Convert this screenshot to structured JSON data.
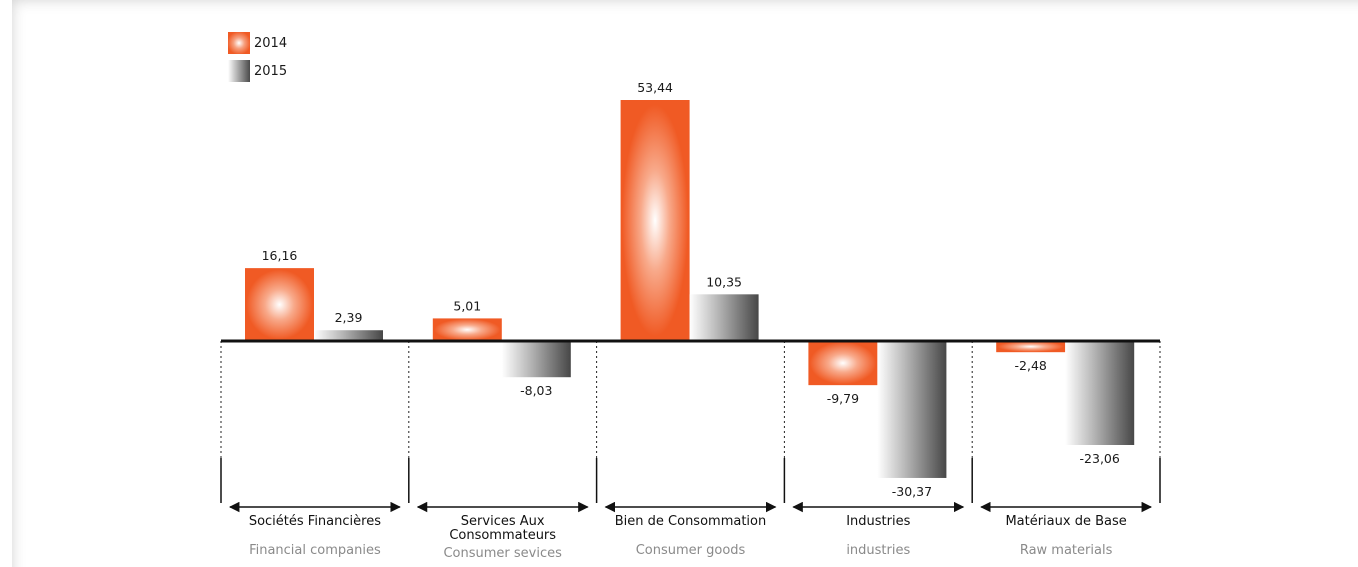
{
  "colors": {
    "s2014": "#f05a24",
    "s2015": "#5a5a5a"
  },
  "chart_data": {
    "type": "bar",
    "categories": [
      "Sociétés Financières",
      "Services Aux Consommateurs",
      "Bien de Consommation",
      "Industries",
      "Matériaux de Base"
    ],
    "categories_en": [
      "Financial companies",
      "Consumer sevices",
      "Consumer goods",
      "industries",
      "Raw materials"
    ],
    "series": [
      {
        "name": "2014",
        "values": [
          16.16,
          5.01,
          53.44,
          -9.79,
          -2.48
        ],
        "labels": [
          "16,16",
          "5,01",
          "53,44",
          "-9,79",
          "-2,48"
        ]
      },
      {
        "name": "2015",
        "values": [
          2.39,
          -8.03,
          10.35,
          -30.37,
          -23.06
        ],
        "labels": [
          "2,39",
          "-8,03",
          "10,35",
          "-30,37",
          "-23,06"
        ]
      }
    ],
    "legend": "top-left",
    "grid": false,
    "ylim": [
      -36,
      56
    ]
  }
}
